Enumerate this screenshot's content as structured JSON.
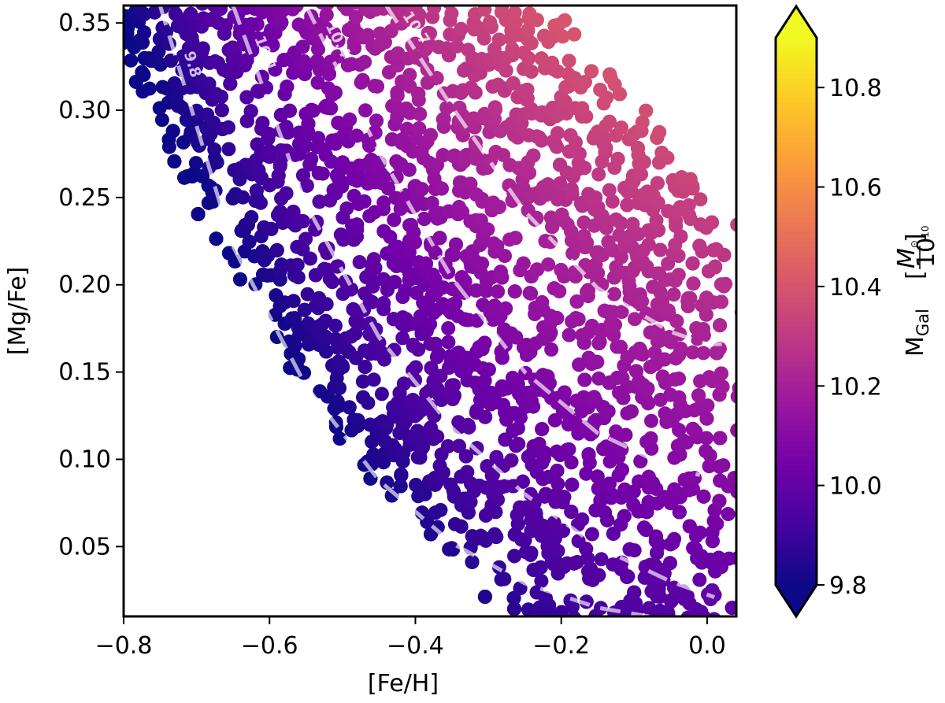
{
  "chart_data": {
    "type": "scatter",
    "title": "",
    "xlabel": "[Fe/H]",
    "ylabel": "[Mg/Fe]",
    "xlim": [
      -0.8,
      0.04
    ],
    "ylim": [
      0.01,
      0.36
    ],
    "xticks": [
      -0.8,
      -0.6,
      -0.4,
      -0.2,
      0.0
    ],
    "xtick_labels": [
      "−0.8",
      "−0.6",
      "−0.4",
      "−0.2",
      "0.0"
    ],
    "yticks": [
      0.05,
      0.1,
      0.15,
      0.2,
      0.25,
      0.3,
      0.35
    ],
    "ytick_labels": [
      "0.05",
      "0.10",
      "0.15",
      "0.20",
      "0.25",
      "0.30",
      "0.35"
    ],
    "grid": false,
    "colormap": "plasma",
    "colorbar": {
      "label_main": "M",
      "label_sub": "Gal",
      "label_unit_num": "M",
      "label_unit_num_sub": "⊙",
      "label_unit_den": "10",
      "label_unit_den_sup": "10",
      "range": [
        9.8,
        10.9
      ],
      "ticks": [
        9.8,
        10.0,
        10.2,
        10.4,
        10.6,
        10.8
      ],
      "tick_labels": [
        "9.8",
        "10.0",
        "10.2",
        "10.4",
        "10.6",
        "10.8"
      ],
      "extend": "both"
    },
    "color_stops": [
      "#0d0887",
      "#46039f",
      "#7201a8",
      "#9c179e",
      "#bd3786",
      "#d8576b",
      "#ed7953",
      "#fb9f3a",
      "#fdca26",
      "#f0f921"
    ],
    "contours": [
      {
        "label": "9.8",
        "points": [
          [
            -0.75,
            0.36
          ],
          [
            -0.65,
            0.222
          ],
          [
            -0.55,
            0.142
          ],
          [
            -0.45,
            0.088
          ],
          [
            -0.35,
            0.052
          ],
          [
            -0.25,
            0.029
          ],
          [
            -0.15,
            0.015
          ],
          [
            -0.08,
            0.01
          ]
        ]
      },
      {
        "label": "10.1",
        "points": [
          [
            -0.65,
            0.36
          ],
          [
            -0.55,
            0.246
          ],
          [
            -0.45,
            0.17
          ],
          [
            -0.35,
            0.118
          ],
          [
            -0.25,
            0.08
          ],
          [
            -0.15,
            0.05
          ],
          [
            -0.05,
            0.03
          ],
          [
            0.01,
            0.021
          ]
        ]
      },
      {
        "label": "10.4",
        "points": [
          [
            -0.55,
            0.36
          ],
          [
            -0.45,
            0.276
          ],
          [
            -0.35,
            0.204
          ],
          [
            -0.25,
            0.15
          ],
          [
            -0.15,
            0.115
          ],
          [
            -0.05,
            0.095
          ],
          [
            -0.01,
            0.091
          ]
        ]
      },
      {
        "label": "10.7",
        "points": [
          [
            -0.44,
            0.36
          ],
          [
            -0.35,
            0.302
          ],
          [
            -0.25,
            0.242
          ],
          [
            -0.15,
            0.198
          ],
          [
            -0.05,
            0.173
          ],
          [
            0.0,
            0.166
          ],
          [
            0.02,
            0.166
          ]
        ]
      }
    ]
  }
}
